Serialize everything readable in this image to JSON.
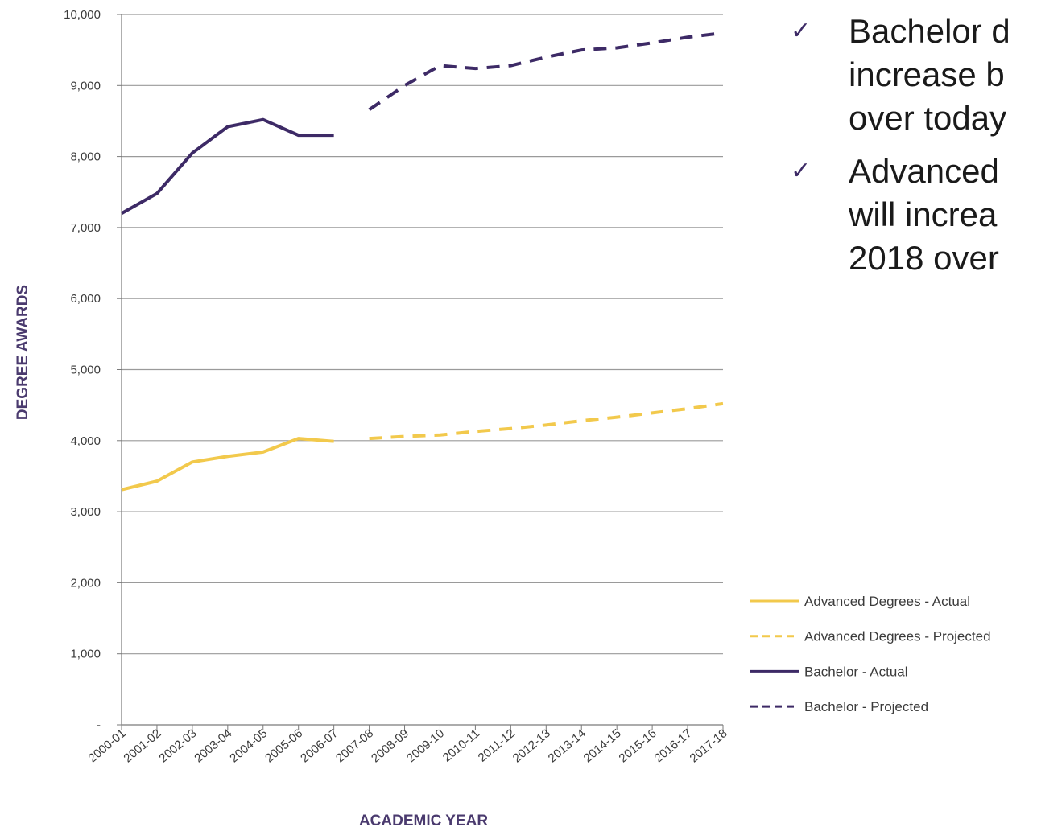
{
  "chart_data": {
    "type": "line",
    "xlabel": "ACADEMIC YEAR",
    "ylabel": "DEGREE AWARDS",
    "ylim": [
      0,
      10000
    ],
    "y_ticks": [
      0,
      1000,
      2000,
      3000,
      4000,
      5000,
      6000,
      7000,
      8000,
      9000,
      10000
    ],
    "y_tick_labels": [
      "-",
      "1,000",
      "2,000",
      "3,000",
      "4,000",
      "5,000",
      "6,000",
      "7,000",
      "8,000",
      "9,000",
      "10,000"
    ],
    "categories": [
      "2000-01",
      "2001-02",
      "2002-03",
      "2003-04",
      "2004-05",
      "2005-06",
      "2006-07",
      "2007-08",
      "2008-09",
      "2009-10",
      "2010-11",
      "2011-12",
      "2012-13",
      "2013-14",
      "2014-15",
      "2015-16",
      "2016-17",
      "2017-18"
    ],
    "grid": true,
    "legend_position": "bottom-right",
    "series": [
      {
        "name": "Advanced Degrees - Actual",
        "color": "#f2c94c",
        "style": "solid",
        "values": [
          3310,
          3430,
          3700,
          3780,
          3840,
          4030,
          3990,
          null,
          null,
          null,
          null,
          null,
          null,
          null,
          null,
          null,
          null,
          null
        ]
      },
      {
        "name": "Advanced Degrees - Projected",
        "color": "#f2c94c",
        "style": "dashed",
        "values": [
          null,
          null,
          null,
          null,
          null,
          null,
          null,
          4030,
          4060,
          4080,
          4130,
          4170,
          4220,
          4280,
          4330,
          4390,
          4450,
          4520
        ]
      },
      {
        "name": "Bachelor - Actual",
        "color": "#3d2a66",
        "style": "solid",
        "values": [
          7200,
          7480,
          8050,
          8420,
          8520,
          8300,
          8300,
          null,
          null,
          null,
          null,
          null,
          null,
          null,
          null,
          null,
          null,
          null
        ]
      },
      {
        "name": "Bachelor - Projected",
        "color": "#3d2a66",
        "style": "dashed",
        "values": [
          null,
          null,
          null,
          null,
          null,
          null,
          null,
          8660,
          9000,
          9280,
          9240,
          9280,
          9400,
          9500,
          9530,
          9600,
          9680,
          9740
        ]
      }
    ]
  },
  "bullets": [
    {
      "icon": "check-icon",
      "lines": [
        "Bachelor d",
        "increase b",
        "over today"
      ]
    },
    {
      "icon": "check-icon",
      "lines": [
        "Advanced",
        "will increa",
        "2018 over"
      ]
    }
  ]
}
